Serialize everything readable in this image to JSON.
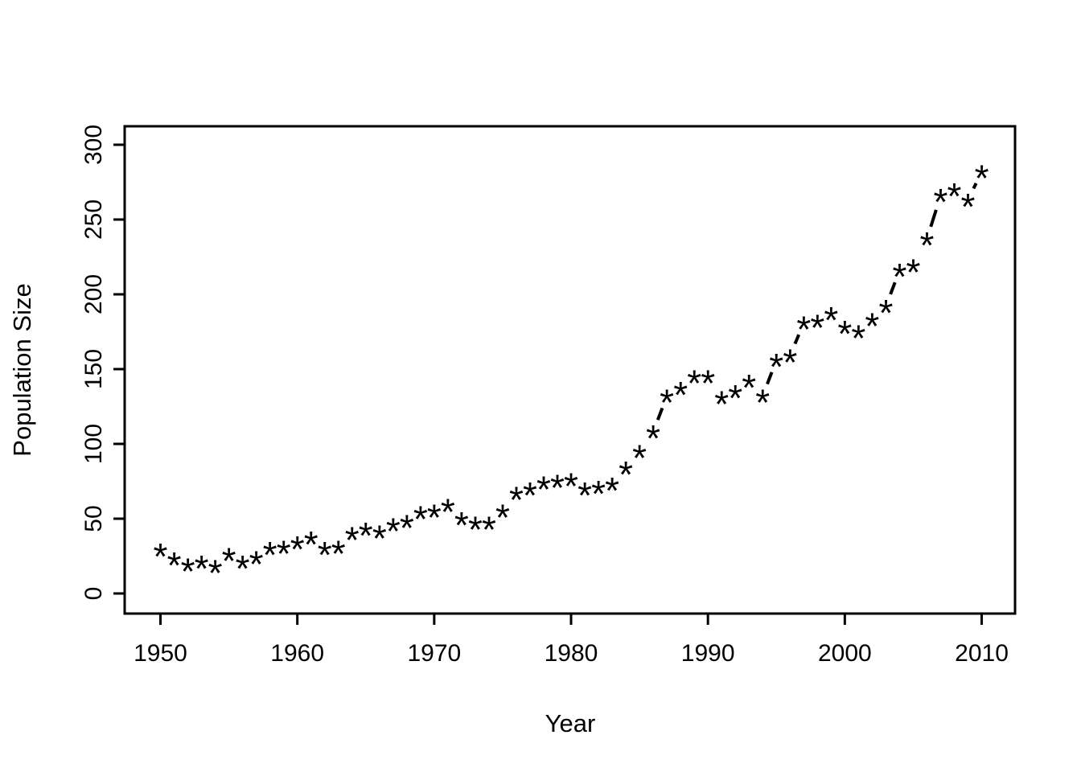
{
  "page": {
    "background": "#ffffff",
    "foreground": "#000000"
  },
  "chart_data": {
    "type": "line",
    "r_plot_type": "b",
    "marker": "*",
    "line_style": "dashed",
    "color": "#000000",
    "title": "",
    "xlabel": "Year",
    "ylabel": "Population Size",
    "legend": null,
    "grid": false,
    "x_ticks": [
      1950,
      1960,
      1970,
      1980,
      1990,
      2000,
      2010
    ],
    "y_ticks": [
      0,
      50,
      100,
      150,
      200,
      250,
      300
    ],
    "xlim": [
      1950,
      2010
    ],
    "ylim": [
      0,
      300
    ],
    "x": [
      1950,
      1951,
      1952,
      1953,
      1954,
      1955,
      1956,
      1957,
      1958,
      1959,
      1960,
      1961,
      1962,
      1963,
      1964,
      1965,
      1966,
      1967,
      1968,
      1969,
      1970,
      1971,
      1972,
      1973,
      1974,
      1975,
      1976,
      1977,
      1978,
      1979,
      1980,
      1981,
      1982,
      1983,
      1984,
      1985,
      1986,
      1987,
      1988,
      1989,
      1990,
      1991,
      1992,
      1993,
      1994,
      1995,
      1996,
      1997,
      1998,
      1999,
      2000,
      2001,
      2002,
      2003,
      2004,
      2005,
      2006,
      2007,
      2008,
      2009,
      2010
    ],
    "values": [
      29,
      23,
      19,
      21,
      18,
      26,
      21,
      24,
      30,
      31,
      34,
      37,
      30,
      31,
      40,
      43,
      41,
      46,
      48,
      54,
      55,
      59,
      50,
      47,
      47,
      55,
      67,
      70,
      74,
      75,
      76,
      70,
      71,
      73,
      84,
      95,
      108,
      132,
      137,
      145,
      145,
      131,
      135,
      142,
      132,
      156,
      159,
      181,
      182,
      187,
      178,
      175,
      183,
      192,
      216,
      219,
      237,
      266,
      270,
      263,
      282
    ]
  }
}
